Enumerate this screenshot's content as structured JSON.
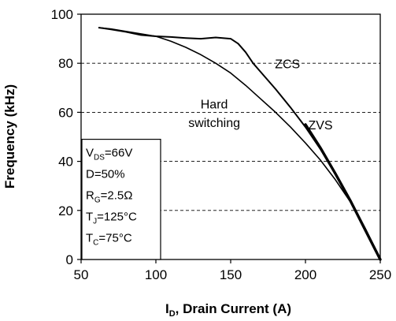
{
  "chart_data": {
    "type": "line",
    "xlabel": {
      "prefix": "I",
      "sub": "D",
      "rest": ", Drain Current (A)"
    },
    "ylabel": "Frequency (kHz)",
    "xlim": [
      50,
      250
    ],
    "ylim": [
      0,
      100
    ],
    "xticks": [
      50,
      100,
      150,
      200,
      250
    ],
    "yticks": [
      0,
      20,
      40,
      60,
      80,
      100
    ],
    "grid": "horizontal-dashed",
    "series": [
      {
        "name": "Hard switching",
        "x": [
          62,
          70,
          80,
          90,
          100,
          110,
          120,
          130,
          140,
          150,
          160,
          170,
          180,
          190,
          200,
          210,
          220,
          230,
          240,
          250
        ],
        "y": [
          94.5,
          94,
          93,
          92,
          91,
          89,
          86.5,
          83.5,
          80,
          76,
          71,
          65.5,
          60,
          54,
          47.5,
          40.5,
          32.5,
          23.5,
          12.5,
          0
        ]
      },
      {
        "name": "ZCS",
        "x": [
          62,
          70,
          80,
          90,
          100,
          110,
          120,
          130,
          140,
          150,
          155,
          160,
          165,
          170,
          180,
          190,
          200,
          210,
          220,
          230,
          240,
          250
        ],
        "y": [
          94.5,
          93.8,
          92.8,
          91.5,
          91,
          90.7,
          90.3,
          90,
          90.5,
          90,
          88,
          84.5,
          80,
          76.5,
          69.5,
          62,
          54,
          45,
          35,
          24,
          12.5,
          0
        ]
      },
      {
        "name": "ZVS",
        "x": [
          200,
          210,
          220,
          230,
          240,
          250
        ],
        "y": [
          55,
          45.5,
          35,
          24,
          12,
          0
        ]
      }
    ],
    "annotations": [
      {
        "text": "ZCS",
        "x": 188,
        "y": 78
      },
      {
        "text": "ZVS",
        "x": 210,
        "y": 53
      },
      {
        "text": "Hard",
        "x": 139,
        "y": 61.5
      },
      {
        "text": "switching",
        "x": 139,
        "y": 54
      }
    ],
    "conditions": [
      {
        "main": "V",
        "sub": "DS",
        "rest": "=66V"
      },
      {
        "main": "D=50%",
        "sub": "",
        "rest": ""
      },
      {
        "main": "R",
        "sub": "G",
        "rest": "=2.5Ω"
      },
      {
        "main": "T",
        "sub": "J",
        "rest": "=125°C"
      },
      {
        "main": "T",
        "sub": "C",
        "rest": "=75°C"
      }
    ]
  }
}
